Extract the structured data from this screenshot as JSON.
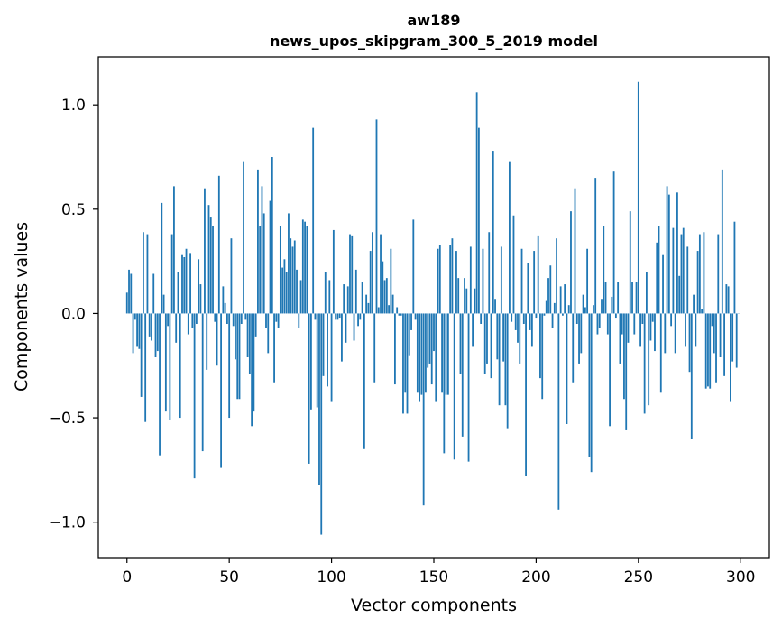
{
  "chart_data": {
    "type": "bar",
    "title": "aw189",
    "subtitle": "news_upos_skipgram_300_5_2019 model",
    "xlabel": "Vector components",
    "ylabel": "Components values",
    "xlim": [
      -14,
      314
    ],
    "ylim": [
      -1.17,
      1.23
    ],
    "xticks": [
      0,
      50,
      100,
      150,
      200,
      250,
      300
    ],
    "xtick_labels": [
      "0",
      "50",
      "100",
      "150",
      "200",
      "250",
      "300"
    ],
    "yticks": [
      -1.0,
      -0.5,
      0.0,
      0.5,
      1.0
    ],
    "ytick_labels": [
      "−1.0",
      "−0.5",
      "0.0",
      "0.5",
      "1.0"
    ],
    "grid": false,
    "bar_color": "#1f77b4",
    "values": [
      0.1,
      0.21,
      0.19,
      -0.19,
      -0.03,
      -0.16,
      -0.17,
      -0.4,
      0.39,
      -0.52,
      0.38,
      -0.11,
      -0.13,
      0.19,
      -0.21,
      -0.18,
      -0.68,
      0.53,
      0.09,
      -0.47,
      -0.06,
      -0.51,
      0.38,
      0.61,
      -0.14,
      0.2,
      -0.5,
      0.28,
      0.27,
      0.31,
      -0.1,
      0.29,
      -0.07,
      -0.79,
      -0.05,
      0.26,
      0.14,
      -0.66,
      0.6,
      -0.27,
      0.52,
      0.46,
      0.42,
      -0.04,
      -0.25,
      0.66,
      -0.74,
      0.13,
      0.05,
      -0.05,
      -0.5,
      0.36,
      -0.06,
      -0.22,
      -0.41,
      -0.41,
      -0.05,
      0.73,
      -0.03,
      -0.21,
      -0.29,
      -0.54,
      -0.47,
      -0.11,
      0.69,
      0.42,
      0.61,
      0.48,
      -0.07,
      -0.19,
      0.54,
      0.75,
      -0.33,
      -0.04,
      -0.07,
      0.42,
      0.22,
      0.26,
      0.2,
      0.48,
      0.36,
      0.32,
      0.35,
      0.21,
      -0.07,
      0.16,
      0.45,
      0.44,
      0.42,
      -0.72,
      -0.46,
      0.89,
      -0.03,
      -0.45,
      -0.82,
      -1.06,
      -0.3,
      0.2,
      -0.35,
      0.16,
      -0.42,
      0.4,
      -0.03,
      -0.03,
      -0.02,
      -0.23,
      0.14,
      -0.14,
      0.13,
      0.38,
      0.37,
      -0.13,
      0.21,
      -0.06,
      -0.03,
      0.15,
      -0.65,
      0.09,
      0.05,
      0.3,
      0.39,
      -0.33,
      0.93,
      0.03,
      0.38,
      0.25,
      0.16,
      0.17,
      0.04,
      0.31,
      0.09,
      -0.34,
      0.03,
      -0.01,
      -0.01,
      -0.48,
      -0.38,
      -0.48,
      -0.2,
      -0.08,
      0.45,
      -0.03,
      -0.38,
      -0.42,
      -0.39,
      -0.92,
      -0.38,
      -0.26,
      -0.24,
      -0.34,
      -0.18,
      -0.42,
      0.31,
      0.33,
      -0.38,
      -0.67,
      -0.39,
      -0.39,
      0.33,
      0.36,
      -0.7,
      0.3,
      0.17,
      -0.29,
      -0.59,
      0.17,
      0.12,
      -0.71,
      0.32,
      -0.16,
      0.12,
      1.06,
      0.89,
      -0.05,
      0.31,
      -0.29,
      -0.24,
      0.39,
      -0.31,
      0.78,
      0.07,
      -0.22,
      -0.44,
      0.32,
      -0.23,
      -0.44,
      -0.55,
      0.73,
      -0.04,
      0.47,
      -0.08,
      -0.14,
      -0.24,
      0.31,
      -0.05,
      -0.78,
      0.24,
      -0.08,
      -0.16,
      0.3,
      -0.02,
      0.37,
      -0.31,
      -0.41,
      -0.01,
      0.06,
      0.17,
      0.23,
      -0.07,
      0.05,
      0.36,
      -0.94,
      0.13,
      -0.01,
      0.14,
      -0.53,
      0.04,
      0.49,
      -0.33,
      0.6,
      -0.05,
      -0.24,
      -0.19,
      0.09,
      0.03,
      0.31,
      -0.69,
      -0.76,
      0.04,
      0.65,
      -0.1,
      -0.07,
      0.07,
      0.42,
      0.15,
      -0.1,
      -0.54,
      0.08,
      0.68,
      -0.02,
      0.15,
      -0.24,
      -0.1,
      -0.41,
      -0.56,
      -0.14,
      0.49,
      0.15,
      -0.1,
      0.15,
      1.11,
      -0.16,
      -0.05,
      -0.48,
      0.2,
      -0.44,
      -0.13,
      -0.04,
      -0.18,
      0.34,
      0.42,
      -0.38,
      0.28,
      -0.19,
      0.61,
      0.57,
      -0.06,
      0.41,
      -0.19,
      0.58,
      0.18,
      0.38,
      0.41,
      -0.16,
      0.32,
      -0.28,
      -0.6,
      0.09,
      -0.16,
      0.3,
      0.38,
      0.02,
      0.39,
      -0.36,
      -0.35,
      -0.36,
      -0.06,
      -0.19,
      -0.33,
      0.38,
      -0.21,
      0.69,
      -0.3,
      0.14,
      0.13,
      -0.42,
      -0.23,
      0.44,
      -0.26,
      0.0
    ]
  }
}
